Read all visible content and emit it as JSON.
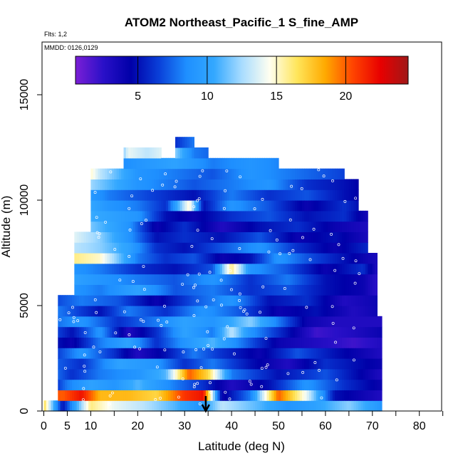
{
  "chart_data": {
    "type": "heatmap",
    "title": "ATOM2 Northeast_Pacific_1 S_fine_AMP",
    "flights_label": "Flts: 1,2",
    "mmdd_label": "MMDD: 0126,0129",
    "xlabel": "Latitude (deg N)",
    "ylabel": "Altitude (m)",
    "xlim": [
      0,
      85
    ],
    "ylim": [
      0,
      17500
    ],
    "x_ticks": [
      0,
      5,
      10,
      20,
      30,
      40,
      50,
      60,
      70,
      80
    ],
    "x_minor_ticks": [
      15,
      25,
      35,
      45,
      55,
      65,
      75,
      85
    ],
    "y_ticks": [
      0,
      5000,
      10000,
      15000
    ],
    "colorbar": {
      "range": [
        0.5,
        24.5
      ],
      "ticks": [
        5,
        10,
        15,
        20
      ],
      "colors": [
        "#7b1fd6",
        "#2a10c8",
        "#0000a8",
        "#0a3fd8",
        "#1e8fff",
        "#33a8ff",
        "#a8dcff",
        "#fffff0",
        "#ffe55a",
        "#ffaa00",
        "#ff4400",
        "#e80000",
        "#a01818"
      ]
    },
    "marker_latitude": 34.5,
    "profile": {
      "bin_height_m": 500,
      "columns": [
        {
          "lat_start": 0.0,
          "lat_end": 3.0,
          "top_m": 500
        },
        {
          "lat_start": 3.0,
          "lat_end": 6.5,
          "top_m": 5500
        },
        {
          "lat_start": 6.5,
          "lat_end": 10.0,
          "top_m": 8500
        },
        {
          "lat_start": 10.0,
          "lat_end": 13.0,
          "top_m": 11500
        },
        {
          "lat_start": 13.0,
          "lat_end": 17.0,
          "top_m": 11500
        },
        {
          "lat_start": 17.0,
          "lat_end": 21.0,
          "top_m": 12500
        },
        {
          "lat_start": 21.0,
          "lat_end": 25.0,
          "top_m": 12500
        },
        {
          "lat_start": 25.0,
          "lat_end": 28.0,
          "top_m": 12000
        },
        {
          "lat_start": 28.0,
          "lat_end": 32.0,
          "top_m": 13000
        },
        {
          "lat_start": 32.0,
          "lat_end": 35.0,
          "top_m": 12500
        },
        {
          "lat_start": 35.0,
          "lat_end": 38.0,
          "top_m": 12000
        },
        {
          "lat_start": 38.0,
          "lat_end": 42.0,
          "top_m": 12000
        },
        {
          "lat_start": 42.0,
          "lat_end": 46.0,
          "top_m": 12000
        },
        {
          "lat_start": 46.0,
          "lat_end": 50.0,
          "top_m": 12000
        },
        {
          "lat_start": 50.0,
          "lat_end": 54.0,
          "top_m": 11500
        },
        {
          "lat_start": 54.0,
          "lat_end": 57.0,
          "top_m": 11500
        },
        {
          "lat_start": 57.0,
          "lat_end": 61.0,
          "top_m": 11500
        },
        {
          "lat_start": 61.0,
          "lat_end": 64.0,
          "top_m": 11500
        },
        {
          "lat_start": 64.0,
          "lat_end": 67.0,
          "top_m": 11000
        },
        {
          "lat_start": 67.0,
          "lat_end": 69.0,
          "top_m": 9500
        },
        {
          "lat_start": 69.0,
          "lat_end": 71.0,
          "top_m": 7500
        },
        {
          "lat_start": 71.0,
          "lat_end": 72.0,
          "top_m": 4500
        }
      ],
      "layers": [
        {
          "alt_m": 0,
          "lat": [
            0,
            4,
            10,
            15,
            21,
            28,
            33,
            38,
            46,
            52,
            58,
            65,
            72
          ],
          "values": [
            17,
            5,
            16,
            14,
            13,
            11,
            9,
            13,
            11,
            9,
            10,
            12,
            9
          ]
        },
        {
          "alt_m": 500,
          "lat": [
            0,
            4,
            8,
            12,
            18,
            24,
            30,
            34,
            38,
            44,
            50,
            56,
            62,
            72
          ],
          "values": [
            21,
            20,
            22,
            18,
            18,
            17,
            21,
            22,
            4,
            8,
            20,
            14,
            5,
            3
          ]
        },
        {
          "alt_m": 1000,
          "lat": [
            0,
            5,
            10,
            15,
            20,
            28,
            34,
            40,
            48,
            56,
            64,
            72
          ],
          "values": [
            4,
            8,
            10,
            9,
            11,
            8,
            6,
            3,
            5,
            9,
            6,
            4
          ]
        },
        {
          "alt_m": 1500,
          "lat": [
            0,
            6,
            12,
            20,
            26,
            31,
            35,
            40,
            50,
            60,
            72
          ],
          "values": [
            9,
            6,
            8,
            9,
            11,
            20,
            17,
            8,
            5,
            7,
            3
          ]
        },
        {
          "alt_m": 2000,
          "lat": [
            0,
            8,
            16,
            24,
            30,
            36,
            44,
            52,
            60,
            72
          ],
          "values": [
            8,
            6,
            10,
            9,
            6,
            8,
            5,
            3,
            6,
            4
          ]
        },
        {
          "alt_m": 2500,
          "lat": [
            0,
            8,
            15,
            20,
            26,
            32,
            38,
            46,
            54,
            62,
            72
          ],
          "values": [
            5,
            9,
            6,
            3,
            5,
            8,
            6,
            4,
            7,
            5,
            3
          ]
        },
        {
          "alt_m": 3000,
          "lat": [
            0,
            6,
            12,
            18,
            24,
            30,
            36,
            42,
            50,
            58,
            66,
            72
          ],
          "values": [
            6,
            4,
            8,
            10,
            6,
            9,
            11,
            8,
            4,
            3,
            2,
            3
          ]
        },
        {
          "alt_m": 3500,
          "lat": [
            0,
            6,
            12,
            18,
            24,
            30,
            36,
            40,
            44,
            50,
            58,
            66,
            72
          ],
          "values": [
            8,
            5,
            9,
            3,
            6,
            10,
            8,
            13,
            9,
            6,
            2,
            3,
            4
          ]
        },
        {
          "alt_m": 4000,
          "lat": [
            0,
            8,
            16,
            24,
            30,
            36,
            44,
            50,
            56,
            62,
            72
          ],
          "values": [
            7,
            9,
            6,
            8,
            10,
            9,
            12,
            8,
            4,
            3,
            3
          ]
        },
        {
          "alt_m": 4500,
          "lat": [
            0,
            6,
            12,
            18,
            26,
            34,
            42,
            50,
            58,
            66,
            72
          ],
          "values": [
            9,
            7,
            5,
            8,
            6,
            9,
            7,
            4,
            5,
            3,
            4
          ]
        },
        {
          "alt_m": 5000,
          "lat": [
            0,
            8,
            16,
            24,
            32,
            40,
            48,
            56,
            64,
            72
          ],
          "values": [
            6,
            8,
            7,
            4,
            7,
            9,
            5,
            6,
            3,
            4
          ]
        },
        {
          "alt_m": 5500,
          "lat": [
            0,
            6,
            12,
            20,
            28,
            36,
            44,
            52,
            60,
            68,
            72
          ],
          "values": [
            11,
            9,
            8,
            10,
            7,
            8,
            6,
            7,
            5,
            4,
            2
          ]
        },
        {
          "alt_m": 6000,
          "lat": [
            0,
            6,
            12,
            20,
            28,
            36,
            44,
            52,
            60,
            68,
            72
          ],
          "values": [
            12,
            10,
            9,
            8,
            7,
            9,
            6,
            8,
            5,
            4,
            2
          ]
        },
        {
          "alt_m": 6500,
          "lat": [
            0,
            6,
            12,
            20,
            28,
            36,
            40,
            44,
            52,
            60,
            68,
            72
          ],
          "values": [
            10,
            9,
            8,
            6,
            5,
            7,
            16,
            9,
            7,
            4,
            6,
            2
          ]
        },
        {
          "alt_m": 7000,
          "lat": [
            0,
            6,
            12,
            20,
            26,
            32,
            38,
            44,
            50,
            56,
            64,
            72
          ],
          "values": [
            15,
            16,
            15,
            8,
            6,
            7,
            4,
            5,
            9,
            7,
            5,
            3
          ]
        },
        {
          "alt_m": 7500,
          "lat": [
            0,
            6,
            12,
            18,
            24,
            30,
            38,
            46,
            54,
            62,
            70,
            72
          ],
          "values": [
            14,
            13,
            12,
            10,
            6,
            5,
            7,
            9,
            6,
            4,
            6,
            3
          ]
        },
        {
          "alt_m": 8000,
          "lat": [
            0,
            6,
            12,
            18,
            24,
            30,
            38,
            46,
            54,
            62,
            70
          ],
          "values": [
            16,
            14,
            12,
            9,
            5,
            6,
            5,
            7,
            4,
            5,
            3
          ]
        },
        {
          "alt_m": 8500,
          "lat": [
            0,
            6,
            12,
            18,
            24,
            30,
            38,
            46,
            54,
            62,
            70
          ],
          "values": [
            14,
            13,
            11,
            9,
            4,
            6,
            3,
            5,
            6,
            4,
            3
          ]
        },
        {
          "alt_m": 9000,
          "lat": [
            2,
            8,
            14,
            20,
            26,
            32,
            40,
            48,
            56,
            64,
            70
          ],
          "values": [
            12,
            11,
            10,
            9,
            5,
            4,
            6,
            7,
            5,
            6,
            3
          ]
        },
        {
          "alt_m": 9500,
          "lat": [
            2,
            8,
            14,
            20,
            26,
            31,
            34,
            40,
            48,
            56,
            64,
            70
          ],
          "values": [
            10,
            11,
            9,
            8,
            6,
            15,
            5,
            9,
            7,
            4,
            6,
            4
          ]
        },
        {
          "alt_m": 10000,
          "lat": [
            2,
            8,
            14,
            20,
            26,
            32,
            40,
            48,
            56,
            64,
            70
          ],
          "values": [
            9,
            10,
            8,
            7,
            6,
            5,
            8,
            6,
            7,
            5,
            4
          ]
        },
        {
          "alt_m": 10500,
          "lat": [
            2,
            8,
            14,
            20,
            26,
            32,
            40,
            48,
            56,
            64,
            70
          ],
          "values": [
            12,
            13,
            11,
            9,
            8,
            7,
            8,
            9,
            6,
            5,
            4
          ]
        },
        {
          "alt_m": 11000,
          "lat": [
            2,
            4,
            8,
            12,
            20,
            28,
            36,
            44,
            52,
            60,
            68
          ],
          "values": [
            16,
            19,
            17,
            13,
            9,
            8,
            7,
            9,
            8,
            7,
            6
          ]
        },
        {
          "alt_m": 11500,
          "lat": [
            9,
            14,
            20,
            28,
            36,
            44,
            52,
            60
          ],
          "values": [
            4,
            8,
            9,
            10,
            8,
            9,
            8,
            7
          ]
        },
        {
          "alt_m": 12000,
          "lat": [
            10,
            14,
            18,
            22,
            26,
            32,
            38,
            46
          ],
          "values": [
            5,
            6,
            14,
            13,
            14,
            8,
            7,
            8
          ]
        },
        {
          "alt_m": 12500,
          "lat": [
            28,
            32,
            36
          ],
          "values": [
            6,
            8,
            7
          ]
        }
      ]
    }
  }
}
